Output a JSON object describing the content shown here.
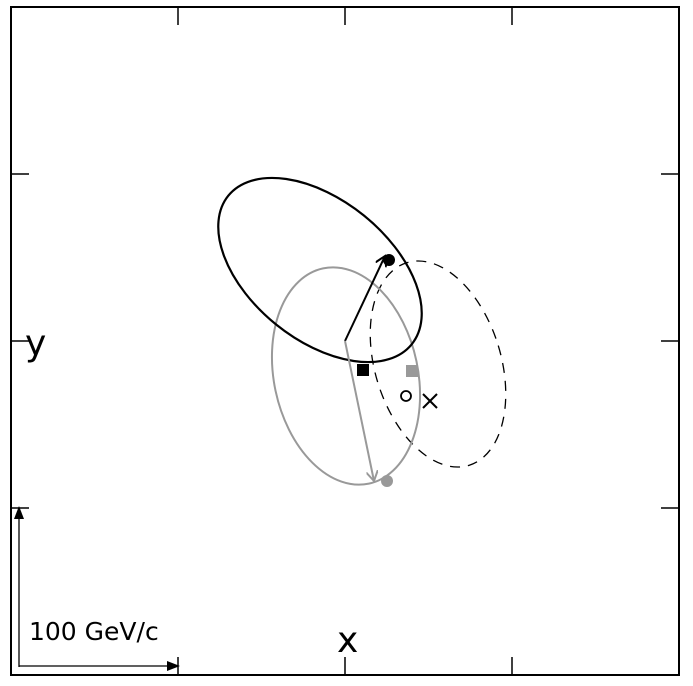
{
  "axes": {
    "x_label": "x",
    "y_label": "y"
  },
  "scale_bar": {
    "label": "100 GeV/c"
  },
  "colors": {
    "black": "#000000",
    "gray": "#999999"
  }
}
